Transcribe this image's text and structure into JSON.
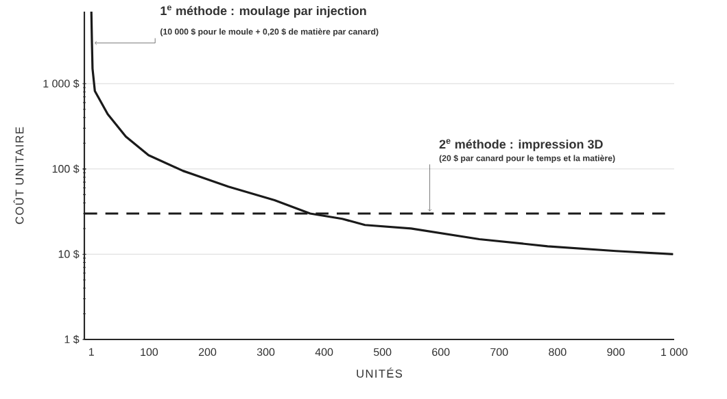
{
  "chart_data": {
    "type": "line",
    "xlabel": "UNITÉS",
    "ylabel": "COÛT UNITAIRE",
    "log": "y",
    "grid": "y",
    "xlim": [
      -11,
      1000
    ],
    "xticks": [
      1,
      100,
      200,
      300,
      400,
      500,
      600,
      700,
      800,
      900,
      {
        "value": 1000,
        "label": "1 000"
      }
    ],
    "ylim": [
      1,
      7000
    ],
    "yticks": [
      {
        "value": 1,
        "label": "1 $"
      },
      {
        "value": 10,
        "label": "10 $"
      },
      {
        "value": 100,
        "label": "100 $"
      },
      {
        "value": 1000,
        "label": "1 000 $"
      }
    ],
    "series": [
      {
        "color": "#1a1a1a",
        "x": [
          1,
          2,
          3,
          7,
          29,
          60,
          99,
          158,
          236,
          315,
          376,
          431,
          470,
          549,
          666,
          783,
          900,
          998
        ],
        "values": [
          7000,
          3000,
          1500,
          820,
          440,
          240,
          145,
          95,
          62,
          43,
          30,
          26,
          22,
          20,
          15,
          12.4,
          10.9,
          10
        ]
      }
    ],
    "ref_lines": [
      {
        "axis": "y",
        "value": 30,
        "color": "#1a1a1a",
        "line_style": "dashed"
      }
    ],
    "annotations": [
      "1$^{e}$ méthode : moulage par injection",
      {
        "text": "(10 000 $ pour le moule + 0,20 $ de matière par canard)",
        "x": 2,
        "y": 3000
      },
      "2$^{e}$ méthode : impression 3D",
      {
        "text": "(20 $ par canard pour le temps et la matière)",
        "x": 581,
        "y": 30
      }
    ]
  }
}
